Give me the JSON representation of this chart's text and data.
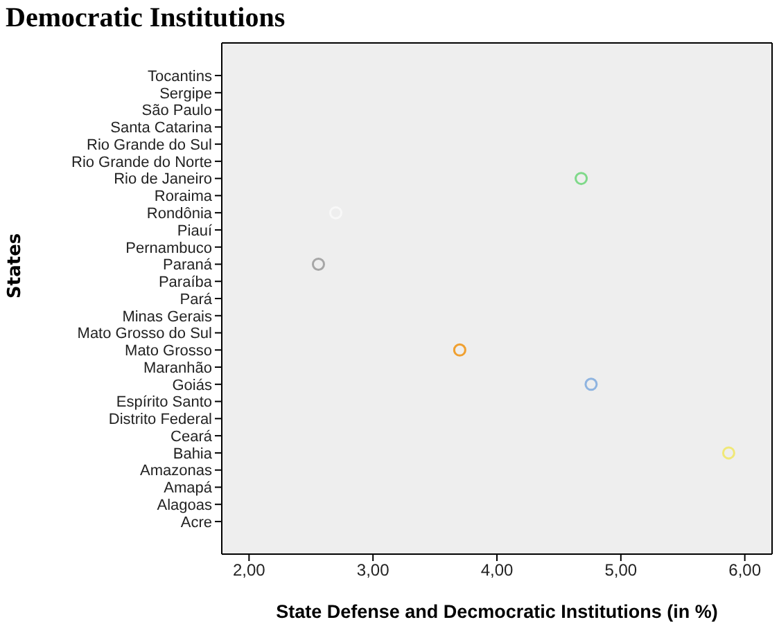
{
  "chart_data": {
    "type": "scatter",
    "title": "Democratic Institutions",
    "xlabel": "State Defense and Decmocratic Institutions (in %)",
    "ylabel": "States",
    "orientation": "horizontal",
    "marker": "circle",
    "grid": false,
    "legend": false,
    "categories": [
      "Tocantins",
      "Sergipe",
      "São Paulo",
      "Santa Catarina",
      "Rio Grande do Sul",
      "Rio Grande do Norte",
      "Rio de Janeiro",
      "Roraima",
      "Rondônia",
      "Piauí",
      "Pernambuco",
      "Paraná",
      "Paraíba",
      "Pará",
      "Minas Gerais",
      "Mato Grosso do Sul",
      "Mato Grosso",
      "Maranhão",
      "Goiás",
      "Espírito Santo",
      "Distrito Federal",
      "Ceará",
      "Bahia",
      "Amazonas",
      "Amapá",
      "Alagoas",
      "Acre"
    ],
    "values": [
      null,
      null,
      null,
      null,
      null,
      null,
      4.68,
      null,
      2.7,
      null,
      null,
      2.56,
      null,
      null,
      null,
      null,
      3.7,
      null,
      4.76,
      null,
      null,
      null,
      5.87,
      null,
      null,
      null,
      null
    ],
    "colors": [
      "#000000",
      "#000000",
      "#000000",
      "#000000",
      "#000000",
      "#000000",
      "#7fd98a",
      "#000000",
      "#f8f8f8",
      "#000000",
      "#000000",
      "#a6a6a6",
      "#000000",
      "#000000",
      "#000000",
      "#000000",
      "#f0a030",
      "#000000",
      "#8fb4e0",
      "#000000",
      "#000000",
      "#000000",
      "#f0e878",
      "#000000",
      "#000000",
      "#000000",
      "#000000"
    ],
    "xlim": [
      1.78,
      6.22
    ],
    "xticks": [
      {
        "value": 2,
        "label": "2,00"
      },
      {
        "value": 3,
        "label": "3,00"
      },
      {
        "value": 4,
        "label": "4,00"
      },
      {
        "value": 5,
        "label": "5,00"
      },
      {
        "value": 6,
        "label": "6,00"
      }
    ]
  }
}
